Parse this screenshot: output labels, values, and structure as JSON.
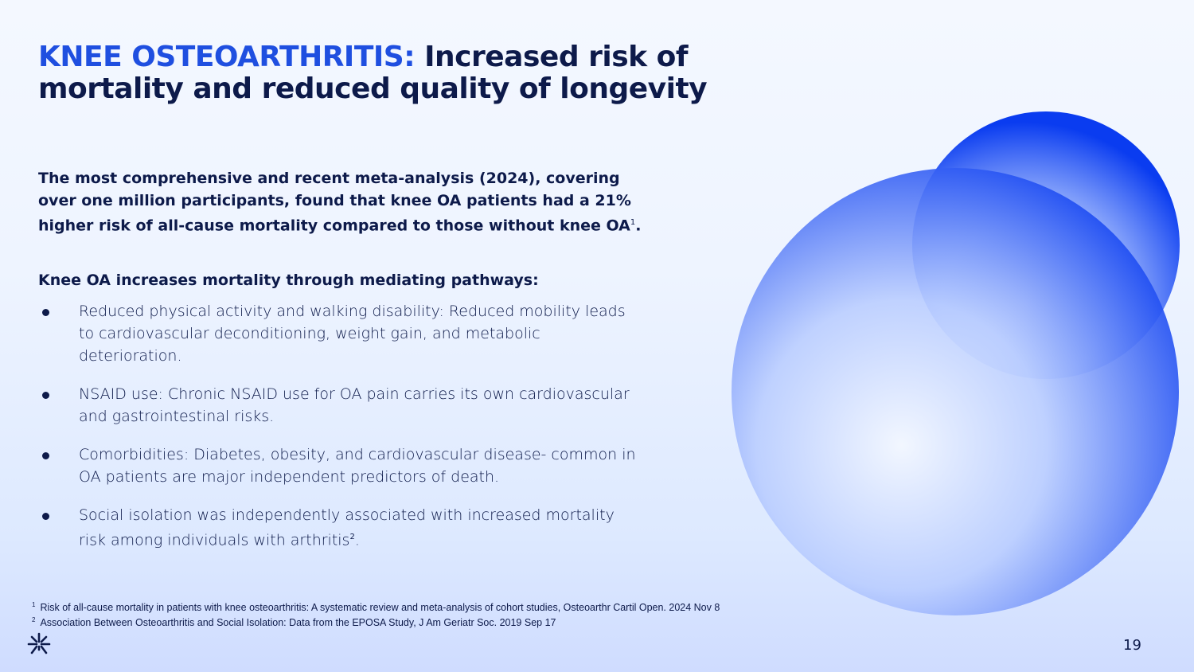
{
  "title": {
    "accent": "KNEE OSTEOARTHRITIS:",
    "rest": " Increased risk of mortality and reduced quality of longevity"
  },
  "intro": {
    "text": "The most comprehensive and recent meta-analysis (2024), covering over one million participants, found that knee OA patients had a 21% higher risk of all-cause mortality compared to those without knee OA",
    "ref": "1",
    "end": "."
  },
  "subhead": "Knee OA increases mortality through mediating pathways:",
  "bullets": [
    {
      "text": "Reduced physical activity and walking disability: Reduced mobility leads to cardiovascular deconditioning, weight gain, and metabolic deterioration."
    },
    {
      "text": "NSAID use: Chronic NSAID use for OA pain carries its own cardiovascular and gastrointestinal risks."
    },
    {
      "text": "Comorbidities: Diabetes, obesity, and cardiovascular disease- common in OA patients are major independent predictors of death."
    },
    {
      "text": "Social isolation was independently associated with increased mortality risk among individuals with arthritis",
      "ref": "2",
      "end": "."
    }
  ],
  "footnotes": [
    {
      "num": "1",
      "text": "Risk of all-cause mortality in patients with knee osteoarthritis: A systematic review and meta-analysis of cohort studies, Osteoarthr Cartil Open. 2024 Nov 8"
    },
    {
      "num": "2",
      "text": "Association Between Osteoarthritis and Social Isolation: Data from the EPOSA Study, J Am Geriatr Soc. 2019 Sep 17"
    }
  ],
  "page_number": "19",
  "colors": {
    "accent": "#1f4fe0",
    "text": "#0d1a4a",
    "circle_blue": "#0a3cf0"
  },
  "icons": {
    "logo": "asterisk-logo-icon"
  }
}
